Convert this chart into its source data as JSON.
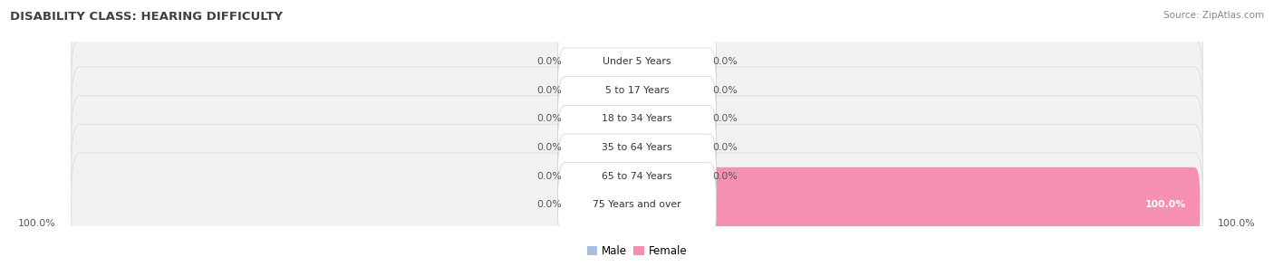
{
  "title": "DISABILITY CLASS: HEARING DIFFICULTY",
  "source": "Source: ZipAtlas.com",
  "categories": [
    "Under 5 Years",
    "5 to 17 Years",
    "18 to 34 Years",
    "35 to 64 Years",
    "65 to 74 Years",
    "75 Years and over"
  ],
  "male_values": [
    0.0,
    0.0,
    0.0,
    0.0,
    0.0,
    0.0
  ],
  "female_values": [
    0.0,
    0.0,
    0.0,
    0.0,
    0.0,
    100.0
  ],
  "male_color": "#aabfdf",
  "female_color": "#f590b0",
  "bar_bg_color": "#f2f2f2",
  "bar_bg_edge_color": "#e0e0e0",
  "label_color": "#555555",
  "title_color": "#404040",
  "source_color": "#888888",
  "max_value": 100.0,
  "stub_size": 12.0,
  "bar_height": 0.62,
  "legend_male_label": "Male",
  "legend_female_label": "Female",
  "bottom_left_label": "100.0%",
  "bottom_right_label": "100.0%"
}
